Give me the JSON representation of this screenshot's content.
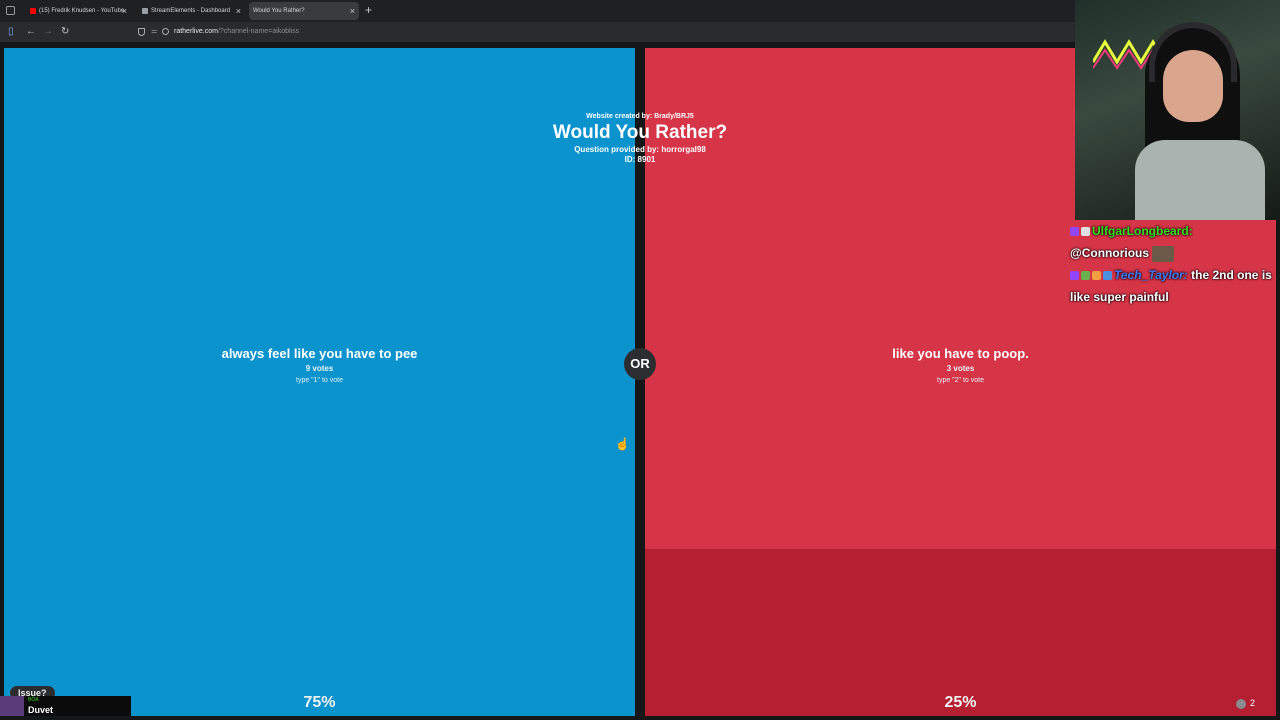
{
  "browser": {
    "tabs": [
      {
        "label": "(15) Fredrik Knudsen - YouTube",
        "color": "#ff0000",
        "active": false
      },
      {
        "label": "StreamElements - Dashboard",
        "color": "#9aa0a6",
        "active": false
      },
      {
        "label": "Would You Rather?",
        "color": "#9aa0a6",
        "active": true
      }
    ],
    "new_tab_icon": "+",
    "close_icon": "×",
    "back_icon": "←",
    "forward_icon": "→",
    "reload_icon": "↻",
    "url_host": "ratherlive.com",
    "url_rest": "/?channel-name=aikobliss"
  },
  "game": {
    "credit": "Website created by: Brady/BRJ5",
    "title": "Would You Rather?",
    "provided_by": "Question provided by: horrorgal98",
    "question_id": "ID: 8901",
    "or_label": "OR",
    "option1": {
      "text": "always feel like you have to pee",
      "votes": "9 votes",
      "hint": "type \"1\" to vote",
      "percent": "75%",
      "color": "#0b93cd"
    },
    "option2": {
      "text": "like you have to poop.",
      "votes": "3 votes",
      "hint": "type \"2\" to vote",
      "percent": "25%",
      "color": "#d63447",
      "fill_fraction": 0.25
    }
  },
  "chat": {
    "messages": [
      {
        "user": "UlfgarLongbeard:",
        "text": "@Connorious"
      },
      {
        "user": "Tech_Taylor:",
        "text": " the 2nd one is like super painful"
      }
    ]
  },
  "overlay": {
    "issue_label": "Issue?",
    "now_playing_small": "BÖA",
    "now_playing_title": "Duvet",
    "viewer_count": "2"
  }
}
